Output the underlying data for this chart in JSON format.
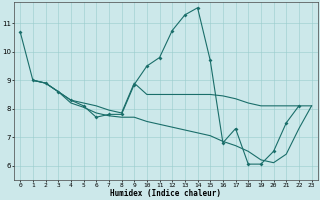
{
  "xlabel": "Humidex (Indice chaleur)",
  "bg_color": "#cce8ea",
  "grid_color": "#99cccc",
  "line_color": "#1a6e6a",
  "xlim_min": -0.5,
  "xlim_max": 23.5,
  "ylim_min": 5.5,
  "ylim_max": 11.75,
  "xticks": [
    0,
    1,
    2,
    3,
    4,
    5,
    6,
    7,
    8,
    9,
    10,
    11,
    12,
    13,
    14,
    15,
    16,
    17,
    18,
    19,
    20,
    21,
    22,
    23
  ],
  "yticks": [
    6,
    7,
    8,
    9,
    10,
    11
  ],
  "curve_with_markers_x": [
    0,
    1,
    2,
    3,
    4,
    5,
    6,
    7,
    8,
    9,
    10,
    11,
    12,
    13,
    14,
    15,
    16,
    17,
    18,
    19,
    20,
    21,
    22
  ],
  "curve_with_markers_y": [
    10.7,
    9.0,
    8.9,
    8.6,
    8.3,
    8.1,
    7.7,
    7.8,
    7.8,
    8.85,
    9.5,
    9.8,
    10.75,
    11.3,
    11.55,
    9.7,
    6.8,
    7.3,
    6.05,
    6.05,
    6.5,
    7.5,
    8.1
  ],
  "flat_curve_x": [
    1,
    2,
    3,
    4,
    5,
    6,
    7,
    8,
    9,
    10,
    11,
    12,
    13,
    14,
    15,
    16,
    17,
    18,
    19,
    20,
    21,
    22,
    23
  ],
  "flat_curve_y": [
    9.0,
    8.9,
    8.6,
    8.3,
    8.2,
    8.1,
    7.95,
    7.85,
    8.9,
    8.5,
    8.5,
    8.5,
    8.5,
    8.5,
    8.5,
    8.45,
    8.35,
    8.2,
    8.1,
    8.1,
    8.1,
    8.1,
    8.1
  ],
  "declining_curve_x": [
    1,
    2,
    3,
    4,
    5,
    6,
    7,
    8,
    9,
    10,
    11,
    12,
    13,
    14,
    15,
    16,
    17,
    18,
    19,
    20,
    21,
    22,
    23
  ],
  "declining_curve_y": [
    9.0,
    8.9,
    8.6,
    8.2,
    8.05,
    7.85,
    7.75,
    7.7,
    7.7,
    7.55,
    7.45,
    7.35,
    7.25,
    7.15,
    7.05,
    6.85,
    6.7,
    6.5,
    6.2,
    6.1,
    6.4,
    7.3,
    8.1
  ],
  "lw": 0.8,
  "marker_size": 2.0,
  "tick_fontsize": 4.5,
  "xlabel_fontsize": 5.5
}
